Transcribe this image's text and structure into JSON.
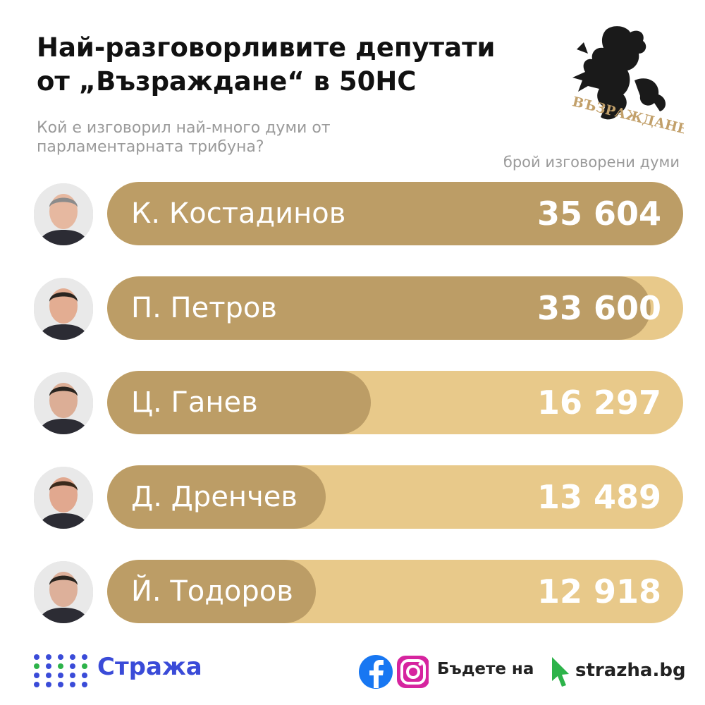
{
  "header": {
    "title_line1": "Най-разговорливите депутати",
    "title_line2": "от „Възраждане“ в 50НС",
    "subtitle_line1": "Кой е изговорил най-много думи от",
    "subtitle_line2": "парламентарната трибуна?",
    "unit_label": "брой изговорени думи",
    "logo_text": "ВЪЗРАЖДАНЕ"
  },
  "chart_data": {
    "type": "bar",
    "orientation": "horizontal",
    "categories": [
      "К. Костадинов",
      "П. Петров",
      "Ц. Ганев",
      "Д. Дренчев",
      "Й. Тодоров"
    ],
    "values": [
      35604,
      33600,
      16297,
      13489,
      12918
    ],
    "value_labels": [
      "35 604",
      "33 600",
      "16 297",
      "13 489",
      "12 918"
    ],
    "title": "Най-разговорливите депутати от „Възраждане“ в 50НС",
    "subtitle": "Кой е изговорил най-много думи от парламентарната трибуна?",
    "xlabel": "брой изговорени думи",
    "ylabel": "",
    "xlim": [
      0,
      35604
    ],
    "grid": false,
    "colors": {
      "bar": "#bc9d66",
      "track": "#e8c98a",
      "label": "#ffffff"
    }
  },
  "footer": {
    "brand": "Стража",
    "cta": "Бъдете на",
    "site": "strazha.bg",
    "icons": [
      "facebook-icon",
      "instagram-icon",
      "cursor-icon"
    ],
    "brand_color": "#3a4bd8"
  }
}
